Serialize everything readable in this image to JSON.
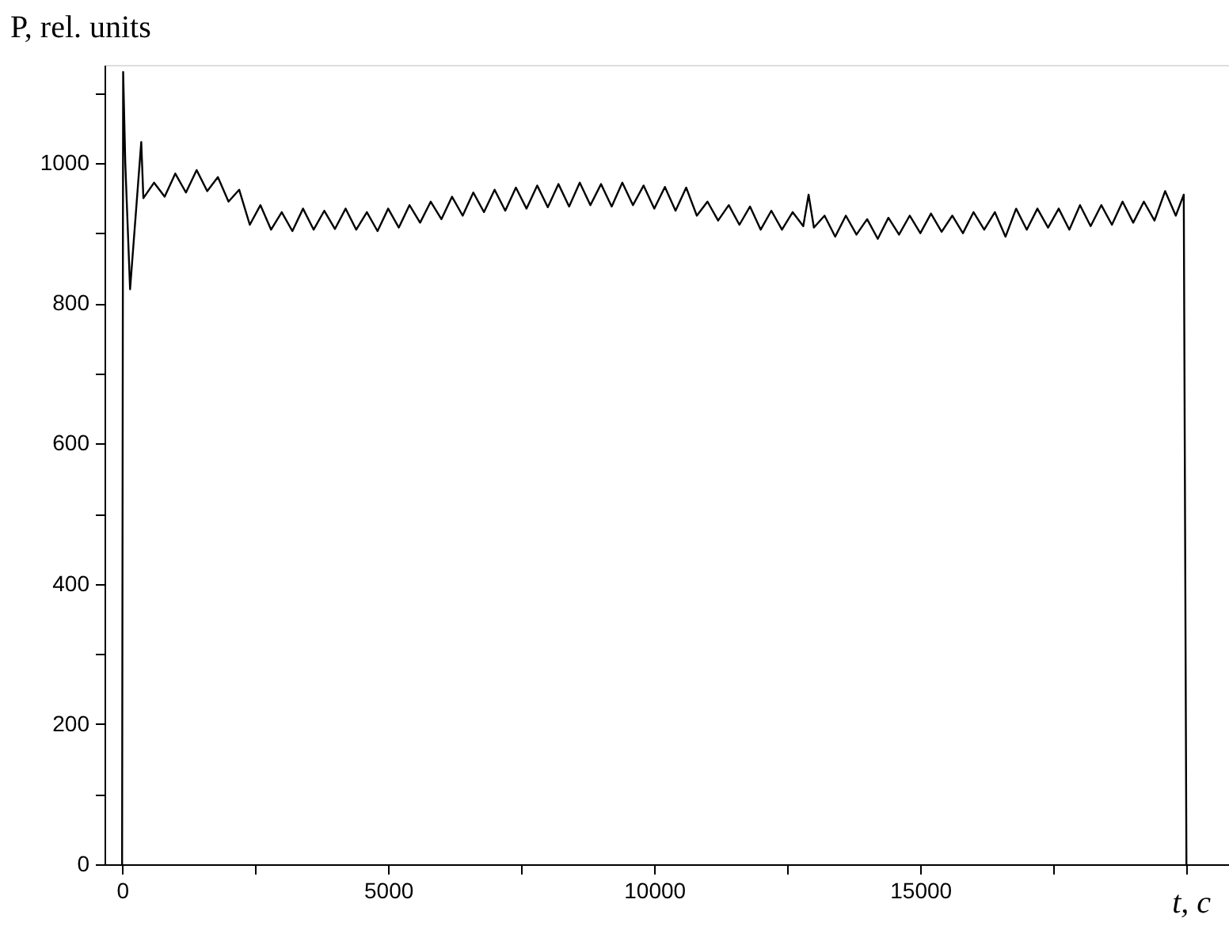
{
  "chart_data": {
    "type": "line",
    "ylabel": "P, rel. units",
    "xlabel": "t, c",
    "x": [
      0,
      20,
      60,
      150,
      360,
      400,
      600,
      800,
      1000,
      1200,
      1400,
      1600,
      1800,
      2000,
      2200,
      2400,
      2600,
      2800,
      3000,
      3200,
      3400,
      3600,
      3800,
      4000,
      4200,
      4400,
      4600,
      4800,
      5000,
      5200,
      5400,
      5600,
      5800,
      6000,
      6200,
      6400,
      6600,
      6800,
      7000,
      7200,
      7400,
      7600,
      7800,
      8000,
      8200,
      8400,
      8600,
      8800,
      9000,
      9200,
      9400,
      9600,
      9800,
      10000,
      10200,
      10400,
      10600,
      10800,
      11000,
      11200,
      11400,
      11600,
      11800,
      12000,
      12200,
      12400,
      12600,
      12800,
      12900,
      13000,
      13200,
      13400,
      13600,
      13800,
      14000,
      14200,
      14400,
      14600,
      14800,
      15000,
      15200,
      15400,
      15600,
      15800,
      16000,
      16200,
      16400,
      16600,
      16800,
      17000,
      17200,
      17400,
      17600,
      17800,
      18000,
      18200,
      18400,
      18600,
      18800,
      19000,
      19200,
      19400,
      19600,
      19800,
      19950,
      20000
    ],
    "series": [
      {
        "color": "#000000",
        "values": [
          0,
          1130,
          1000,
          820,
          1030,
          950,
          972,
          952,
          985,
          958,
          990,
          960,
          980,
          945,
          962,
          912,
          940,
          905,
          930,
          903,
          935,
          905,
          932,
          906,
          935,
          905,
          930,
          903,
          935,
          908,
          940,
          915,
          945,
          920,
          952,
          925,
          958,
          930,
          962,
          932,
          965,
          935,
          968,
          937,
          970,
          938,
          972,
          940,
          970,
          938,
          972,
          940,
          968,
          935,
          966,
          932,
          965,
          925,
          945,
          918,
          940,
          912,
          938,
          905,
          932,
          905,
          930,
          910,
          955,
          908,
          925,
          895,
          925,
          898,
          920,
          892,
          922,
          898,
          925,
          900,
          928,
          902,
          925,
          900,
          930,
          905,
          930,
          895,
          935,
          905,
          935,
          908,
          935,
          905,
          940,
          910,
          940,
          912,
          945,
          915,
          945,
          918,
          960,
          925,
          955,
          0
        ]
      }
    ],
    "xlim": [
      -330,
      20800
    ],
    "ylim": [
      0,
      1140
    ],
    "xticks": [
      0,
      {
        "value": 2500,
        "label": null
      },
      5000,
      {
        "value": 7500,
        "label": null
      },
      10000,
      {
        "value": 12500,
        "label": null
      },
      15000,
      {
        "value": 17500,
        "label": null
      },
      {
        "value": 20000,
        "label": null
      }
    ],
    "yticks": [
      0,
      {
        "value": 100,
        "label": null
      },
      200,
      {
        "value": 300,
        "label": null
      },
      400,
      {
        "value": 500,
        "label": null
      },
      600,
      {
        "value": 700,
        "label": null
      },
      800,
      {
        "value": 900,
        "label": null
      },
      1000,
      {
        "value": 1100,
        "label": null
      }
    ],
    "grid": false,
    "marker": "none",
    "line_style": "solid"
  }
}
